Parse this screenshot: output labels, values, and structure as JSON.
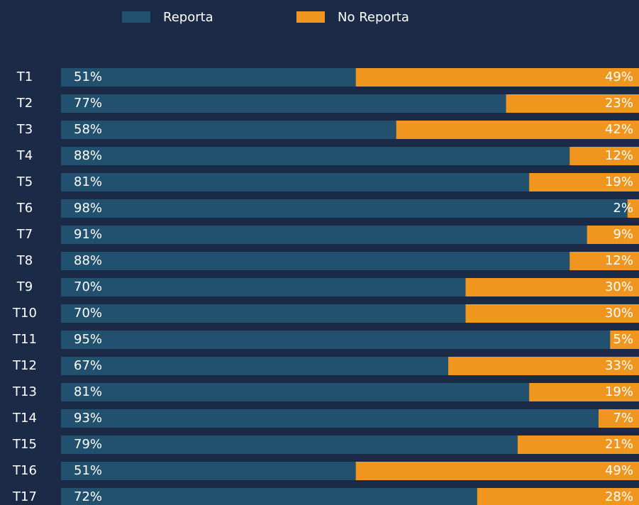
{
  "chart_data": {
    "type": "stacked-bar-horizontal",
    "categories": [
      "T1",
      "T2",
      "T3",
      "T4",
      "T5",
      "T6",
      "T7",
      "T8",
      "T9",
      "T10",
      "T11",
      "T12",
      "T13",
      "T14",
      "T15",
      "T16",
      "T17"
    ],
    "series": [
      {
        "name": "Reporta",
        "color": "#22506f",
        "values": [
          51,
          77,
          58,
          88,
          81,
          98,
          91,
          88,
          70,
          70,
          95,
          67,
          81,
          93,
          79,
          51,
          72
        ],
        "value_labels": [
          "51%",
          "77%",
          "58%",
          "88%",
          "81%",
          "98%",
          "91%",
          "88%",
          "70%",
          "70%",
          "95%",
          "67%",
          "81%",
          "93%",
          "79%",
          "51%",
          "72%"
        ]
      },
      {
        "name": "No Reporta",
        "color": "#f0961e",
        "values": [
          49,
          23,
          42,
          12,
          19,
          2,
          9,
          12,
          30,
          30,
          5,
          33,
          19,
          7,
          21,
          49,
          28
        ],
        "value_labels": [
          "49%",
          "23%",
          "42%",
          "12%",
          "19%",
          "2%",
          "9%",
          "12%",
          "30%",
          "30%",
          "5%",
          "33%",
          "19%",
          "7%",
          "21%",
          "49%",
          "28%"
        ]
      }
    ],
    "legend": "top"
  }
}
